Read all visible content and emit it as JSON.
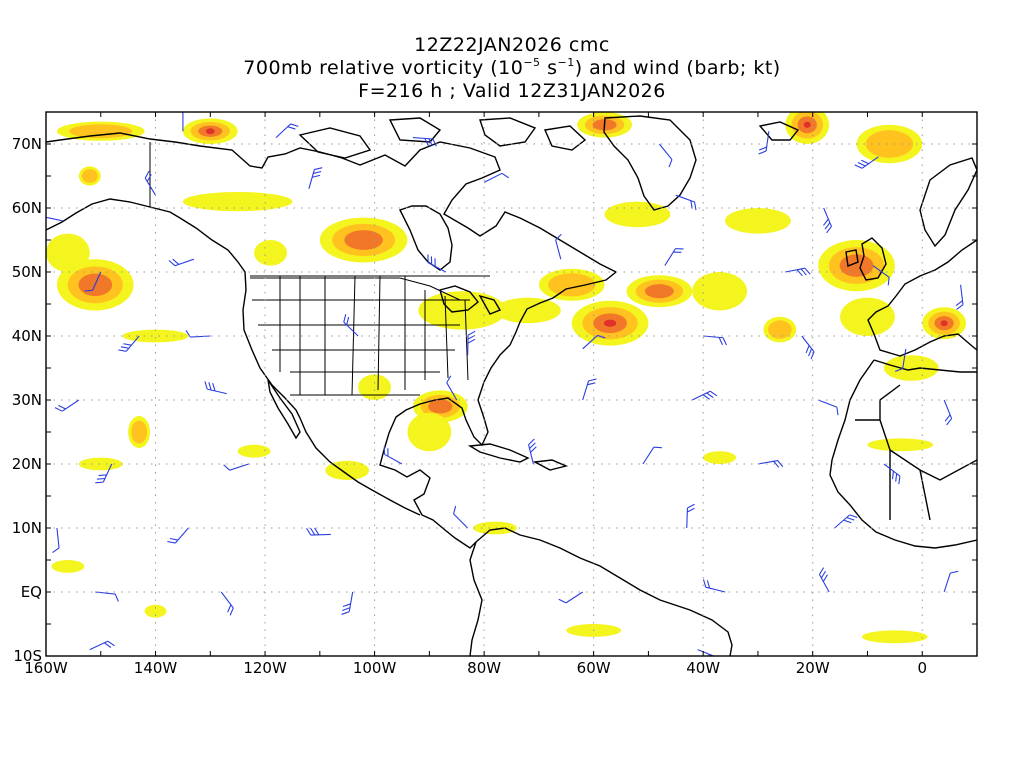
{
  "title": {
    "line1": "12Z22JAN2026 cmc",
    "line2_a": "700mb relative vorticity (10",
    "line2_exp1": "−5",
    "line2_b": " s",
    "line2_exp2": "−1",
    "line2_c": ") and wind (barb; kt)",
    "line3": "F=216 h ; Valid 12Z31JAN2026"
  },
  "map": {
    "lon_range": [
      -160,
      10
    ],
    "lat_range": [
      -10,
      75
    ],
    "lat_labels": [
      {
        "value": 70,
        "label": "70N"
      },
      {
        "value": 60,
        "label": "60N"
      },
      {
        "value": 50,
        "label": "50N"
      },
      {
        "value": 40,
        "label": "40N"
      },
      {
        "value": 30,
        "label": "30N"
      },
      {
        "value": 20,
        "label": "20N"
      },
      {
        "value": 10,
        "label": "10N"
      },
      {
        "value": 0,
        "label": "EQ"
      },
      {
        "value": -10,
        "label": "10S"
      }
    ],
    "lon_labels": [
      {
        "value": -160,
        "label": "160W"
      },
      {
        "value": -140,
        "label": "140W"
      },
      {
        "value": -120,
        "label": "120W"
      },
      {
        "value": -100,
        "label": "100W"
      },
      {
        "value": -80,
        "label": "80W"
      },
      {
        "value": -60,
        "label": "60W"
      },
      {
        "value": -40,
        "label": "40W"
      },
      {
        "value": -20,
        "label": "20W"
      },
      {
        "value": 0,
        "label": "0"
      }
    ],
    "colors": {
      "shade_low": "#f4f41e",
      "shade_mid": "#ffc21e",
      "shade_high": "#f07828",
      "shade_peak": "#e03228",
      "barb": "#2a3ee0",
      "coast": "#000000",
      "grid": "#999999"
    },
    "vorticity_features": [
      {
        "lon": -151,
        "lat": 48,
        "rx": 7,
        "ry": 4,
        "level": 3
      },
      {
        "lon": -130,
        "lat": 72,
        "rx": 5,
        "ry": 2,
        "level": 4
      },
      {
        "lon": -150,
        "lat": 72,
        "rx": 8,
        "ry": 1.5,
        "level": 2
      },
      {
        "lon": -102,
        "lat": 55,
        "rx": 8,
        "ry": 3.5,
        "level": 3
      },
      {
        "lon": -57,
        "lat": 42,
        "rx": 7,
        "ry": 3.5,
        "level": 4
      },
      {
        "lon": -48,
        "lat": 47,
        "rx": 6,
        "ry": 2.5,
        "level": 3
      },
      {
        "lon": -12,
        "lat": 51,
        "rx": 7,
        "ry": 4,
        "level": 3
      },
      {
        "lon": 4,
        "lat": 42,
        "rx": 4,
        "ry": 2.5,
        "level": 4
      },
      {
        "lon": -21,
        "lat": 73,
        "rx": 4,
        "ry": 3,
        "level": 4
      },
      {
        "lon": -58,
        "lat": 73,
        "rx": 5,
        "ry": 2,
        "level": 3
      },
      {
        "lon": -88,
        "lat": 29,
        "rx": 5,
        "ry": 2.5,
        "level": 3
      },
      {
        "lon": -143,
        "lat": 25,
        "rx": 2,
        "ry": 2.5,
        "level": 2
      },
      {
        "lon": -152,
        "lat": 65,
        "rx": 2,
        "ry": 1.5,
        "level": 2
      },
      {
        "lon": -119,
        "lat": 53,
        "rx": 3,
        "ry": 2,
        "level": 1
      },
      {
        "lon": -84,
        "lat": 44,
        "rx": 8,
        "ry": 3,
        "level": 1
      },
      {
        "lon": -72,
        "lat": 44,
        "rx": 6,
        "ry": 2,
        "level": 1
      },
      {
        "lon": -64,
        "lat": 48,
        "rx": 6,
        "ry": 2.5,
        "level": 2
      },
      {
        "lon": -37,
        "lat": 47,
        "rx": 5,
        "ry": 3,
        "level": 1
      },
      {
        "lon": -26,
        "lat": 41,
        "rx": 3,
        "ry": 2,
        "level": 2
      },
      {
        "lon": -10,
        "lat": 43,
        "rx": 5,
        "ry": 3,
        "level": 1
      },
      {
        "lon": -30,
        "lat": 58,
        "rx": 6,
        "ry": 2,
        "level": 1
      },
      {
        "lon": -52,
        "lat": 59,
        "rx": 6,
        "ry": 2,
        "level": 1
      },
      {
        "lon": -156,
        "lat": 53,
        "rx": 4,
        "ry": 3,
        "level": 1
      },
      {
        "lon": -100,
        "lat": 32,
        "rx": 3,
        "ry": 2,
        "level": 1
      },
      {
        "lon": -90,
        "lat": 25,
        "rx": 4,
        "ry": 3,
        "level": 1
      },
      {
        "lon": -150,
        "lat": 20,
        "rx": 4,
        "ry": 1,
        "level": 1
      },
      {
        "lon": -122,
        "lat": 22,
        "rx": 3,
        "ry": 1,
        "level": 1
      },
      {
        "lon": -105,
        "lat": 19,
        "rx": 4,
        "ry": 1.5,
        "level": 1
      },
      {
        "lon": -78,
        "lat": 10,
        "rx": 4,
        "ry": 1,
        "level": 1
      },
      {
        "lon": -37,
        "lat": 21,
        "rx": 3,
        "ry": 1,
        "level": 1
      },
      {
        "lon": -4,
        "lat": 23,
        "rx": 6,
        "ry": 1,
        "level": 1
      },
      {
        "lon": -156,
        "lat": 4,
        "rx": 3,
        "ry": 1,
        "level": 1
      },
      {
        "lon": -140,
        "lat": -3,
        "rx": 2,
        "ry": 1,
        "level": 1
      },
      {
        "lon": -60,
        "lat": -6,
        "rx": 5,
        "ry": 1,
        "level": 1
      },
      {
        "lon": -5,
        "lat": -7,
        "rx": 6,
        "ry": 1,
        "level": 1
      },
      {
        "lon": -125,
        "lat": 61,
        "rx": 10,
        "ry": 1.5,
        "level": 1
      },
      {
        "lon": -140,
        "lat": 40,
        "rx": 6,
        "ry": 1,
        "level": 1
      },
      {
        "lon": -2,
        "lat": 35,
        "rx": 5,
        "ry": 2,
        "level": 1
      },
      {
        "lon": -6,
        "lat": 70,
        "rx": 6,
        "ry": 3,
        "level": 2
      }
    ],
    "wind_barbs": [
      {
        "lon": -135,
        "lat": 72
      },
      {
        "lon": -118,
        "lat": 71
      },
      {
        "lon": -93,
        "lat": 71
      },
      {
        "lon": -48,
        "lat": 70
      },
      {
        "lon": -28,
        "lat": 72
      },
      {
        "lon": -8,
        "lat": 68
      },
      {
        "lon": -157,
        "lat": 58
      },
      {
        "lon": -140,
        "lat": 62
      },
      {
        "lon": -112,
        "lat": 63
      },
      {
        "lon": -80,
        "lat": 64
      },
      {
        "lon": -45,
        "lat": 62
      },
      {
        "lon": -18,
        "lat": 60
      },
      {
        "lon": -150,
        "lat": 50
      },
      {
        "lon": -133,
        "lat": 52
      },
      {
        "lon": -87,
        "lat": 50
      },
      {
        "lon": -66,
        "lat": 52
      },
      {
        "lon": -47,
        "lat": 51
      },
      {
        "lon": -25,
        "lat": 50
      },
      {
        "lon": -9,
        "lat": 51
      },
      {
        "lon": 7,
        "lat": 48
      },
      {
        "lon": -143,
        "lat": 40
      },
      {
        "lon": -130,
        "lat": 40
      },
      {
        "lon": -103,
        "lat": 40
      },
      {
        "lon": -83,
        "lat": 37
      },
      {
        "lon": -62,
        "lat": 38
      },
      {
        "lon": -40,
        "lat": 40
      },
      {
        "lon": -22,
        "lat": 40
      },
      {
        "lon": -3,
        "lat": 38
      },
      {
        "lon": -154,
        "lat": 30
      },
      {
        "lon": -127,
        "lat": 31
      },
      {
        "lon": -85,
        "lat": 30
      },
      {
        "lon": -62,
        "lat": 30
      },
      {
        "lon": -42,
        "lat": 30
      },
      {
        "lon": -19,
        "lat": 30
      },
      {
        "lon": 4,
        "lat": 30
      },
      {
        "lon": -148,
        "lat": 20
      },
      {
        "lon": -123,
        "lat": 20
      },
      {
        "lon": -95,
        "lat": 20
      },
      {
        "lon": -71,
        "lat": 20
      },
      {
        "lon": -51,
        "lat": 20
      },
      {
        "lon": -30,
        "lat": 20
      },
      {
        "lon": -7,
        "lat": 20
      },
      {
        "lon": -158,
        "lat": 10
      },
      {
        "lon": -134,
        "lat": 10
      },
      {
        "lon": -108,
        "lat": 9
      },
      {
        "lon": -83,
        "lat": 10
      },
      {
        "lon": -43,
        "lat": 10
      },
      {
        "lon": -16,
        "lat": 10
      },
      {
        "lon": -151,
        "lat": 0
      },
      {
        "lon": -128,
        "lat": 0
      },
      {
        "lon": -104,
        "lat": 0
      },
      {
        "lon": -62,
        "lat": 0
      },
      {
        "lon": -36,
        "lat": 0
      },
      {
        "lon": -17,
        "lat": 0
      },
      {
        "lon": 4,
        "lat": 0
      },
      {
        "lon": -152,
        "lat": -9
      },
      {
        "lon": -41,
        "lat": -9
      }
    ]
  }
}
